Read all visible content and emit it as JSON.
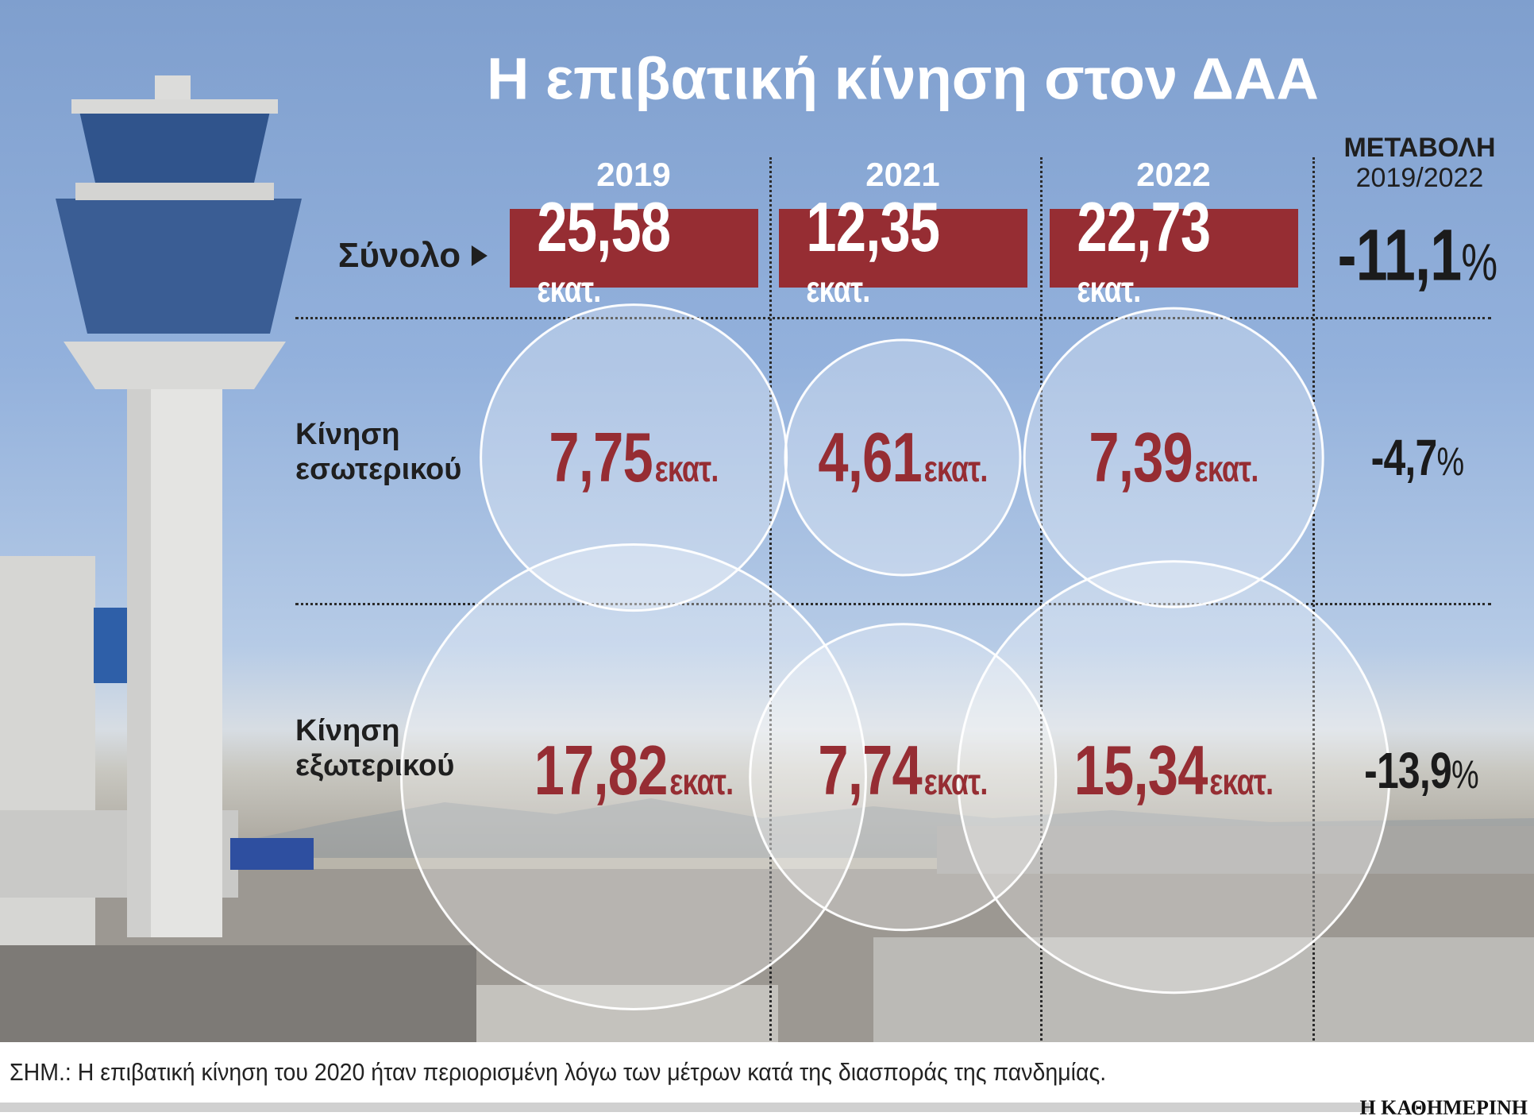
{
  "title": "Η επιβατική κίνηση στον ΔΑΑ",
  "change_header": [
    "ΜΕΤΑΒΟΛΗ",
    "2019/2022"
  ],
  "years": [
    "2019",
    "2021",
    "2022"
  ],
  "unit": "εκατ.",
  "rows": {
    "total": {
      "label": "Σύνολο",
      "values": [
        "25,58",
        "12,35",
        "22,73"
      ],
      "change": "-11,1",
      "pct_sign": "%"
    },
    "domestic": {
      "label_lines": [
        "Κίνηση",
        "εσωτερικού"
      ],
      "values": [
        "7,75",
        "4,61",
        "7,39"
      ],
      "change": "-4,7",
      "pct_sign": "%"
    },
    "international": {
      "label_lines": [
        "Κίνηση",
        "εξωτερικού"
      ],
      "values": [
        "17,82",
        "7,74",
        "15,34"
      ],
      "change": "-13,9",
      "pct_sign": "%"
    }
  },
  "footnote": "ΣΗΜ.: Η επιβατική κίνηση του 2020 ήταν περιορισμένη λόγω των μέτρων κατά της διασποράς της πανδημίας.",
  "logo": "Η ΚΑΘΗΜΕΡΙΝΗ",
  "colors": {
    "accent": "#962d33",
    "text": "#1b1b1b"
  },
  "chart_data": {
    "type": "bubble",
    "title": "Η επιβατική κίνηση στον ΔΑΑ",
    "categories": [
      "2019",
      "2021",
      "2022"
    ],
    "unit": "εκατ.",
    "series": [
      {
        "name": "Σύνολο",
        "values": [
          25.58,
          12.35,
          22.73
        ],
        "change_2019_2022_pct": -11.1
      },
      {
        "name": "Κίνηση εσωτερικού",
        "values": [
          7.75,
          4.61,
          7.39
        ],
        "change_2019_2022_pct": -4.7
      },
      {
        "name": "Κίνηση εξωτερικού",
        "values": [
          17.82,
          7.74,
          15.34
        ],
        "change_2019_2022_pct": -13.9
      }
    ]
  }
}
